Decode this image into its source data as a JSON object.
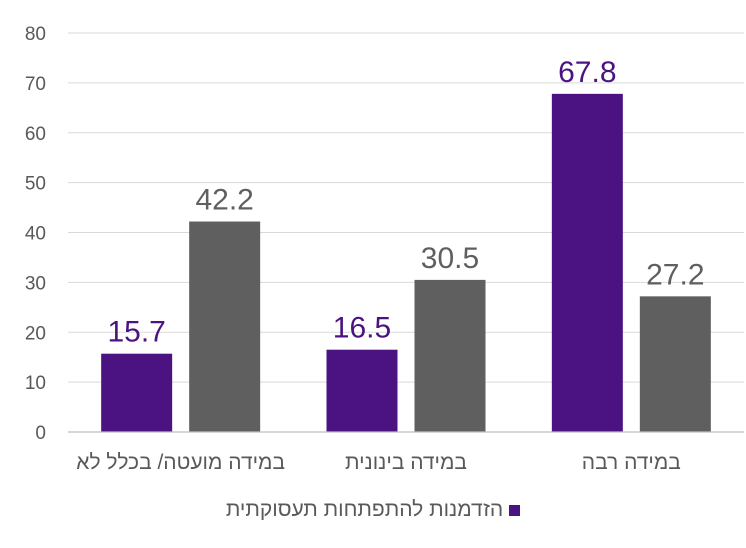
{
  "chart_data": {
    "type": "bar",
    "categories": [
      "במידה מועטה/ בכלל לא",
      "במידה בינונית",
      "במידה רבה"
    ],
    "series": [
      {
        "name": "הזדמנות להתפתחות תעסוקתית",
        "values": [
          15.7,
          16.5,
          67.8
        ],
        "color": "#4b1382",
        "show_in_legend": true
      },
      {
        "name": "",
        "values": [
          42.2,
          30.5,
          27.2
        ],
        "color": "#5f5f5f",
        "show_in_legend": false
      }
    ],
    "yticks": [
      "0",
      "10",
      "20",
      "30",
      "40",
      "50",
      "60",
      "70",
      "80"
    ],
    "ylim": [
      0,
      80
    ],
    "grid": true,
    "legend_position": "bottom-center",
    "title": "",
    "xlabel": "",
    "ylabel": ""
  },
  "legend": {
    "label": "הזדמנות להתפתחות תעסוקתית",
    "color": "#4b1382"
  }
}
